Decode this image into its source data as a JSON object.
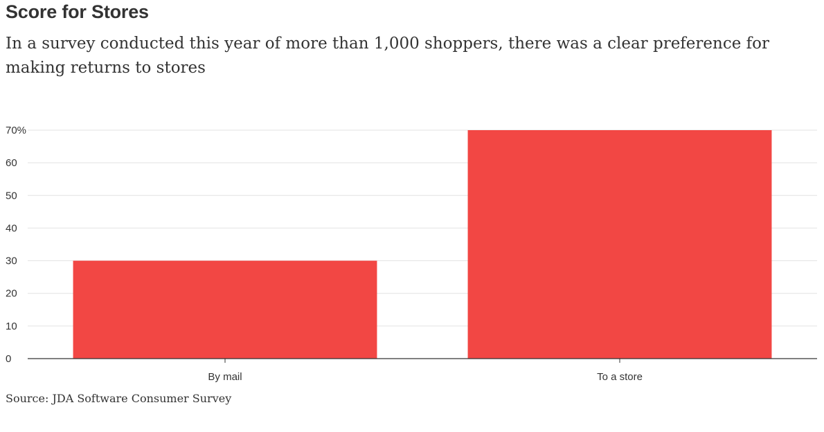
{
  "chart_data": {
    "type": "bar",
    "title": "Score for Stores",
    "subtitle": "In a survey conducted this year of more than 1,000 shoppers, there was a clear preference for making returns to stores",
    "categories": [
      "By mail",
      "To a store"
    ],
    "values": [
      30,
      70
    ],
    "unit": "%",
    "ylim": [
      0,
      70
    ],
    "yticks": [
      "0",
      "10",
      "20",
      "30",
      "40",
      "50",
      "60",
      "70%"
    ],
    "xlabel": "",
    "ylabel": "",
    "grid": true,
    "bar_color": "#f24744",
    "source": "Source: JDA Software Consumer Survey"
  }
}
